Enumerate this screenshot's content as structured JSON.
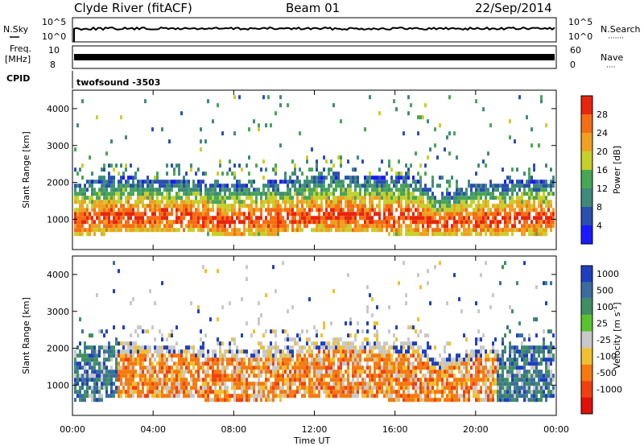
{
  "header": {
    "radar": "Clyde River (fitACF)",
    "beam": "Beam 01",
    "date": "22/Sep/2014"
  },
  "nsky_panel": {
    "left_label": "N.Sky",
    "right_label": "N.Search",
    "right_legend": "·······",
    "left_ticks": [
      "10^5",
      "10^0"
    ],
    "right_ticks": [
      "10^5",
      "10^0"
    ]
  },
  "freq_panel": {
    "left_label_line1": "Freq.",
    "left_label_line2": "[MHz]",
    "right_label": "Nave",
    "right_legend": "····",
    "left_ticks": [
      "10",
      "8"
    ],
    "right_ticks": [
      "60",
      "0"
    ]
  },
  "cpid": {
    "label": "CPID",
    "value": "twofsound -3503"
  },
  "chart_data": [
    {
      "type": "heatmap",
      "quantity": "Power",
      "ylabel": "Slant Range [km]",
      "ylim": [
        180,
        4500
      ],
      "yticks": [
        "1000",
        "2000",
        "3000",
        "4000"
      ],
      "colorbar_label": "Power [dB]",
      "colorbar_ticks": [
        "4",
        "8",
        "12",
        "16",
        "20",
        "24",
        "28"
      ],
      "colorbar_colors": [
        "#1a1aff",
        "#2a4fb0",
        "#3f8a7a",
        "#48a657",
        "#c7cf2a",
        "#f0a020",
        "#f56d12",
        "#e8250d"
      ],
      "band": [
        {
          "t": 0.5,
          "lo": 520,
          "hi": 1950
        },
        {
          "t": 2,
          "lo": 560,
          "hi": 2100
        },
        {
          "t": 4,
          "lo": 580,
          "hi": 2050
        },
        {
          "t": 6,
          "lo": 600,
          "hi": 2000
        },
        {
          "t": 7.5,
          "lo": 450,
          "hi": 1900
        },
        {
          "t": 9,
          "lo": 520,
          "hi": 1950
        },
        {
          "t": 11,
          "lo": 560,
          "hi": 2000
        },
        {
          "t": 13,
          "lo": 600,
          "hi": 2200
        },
        {
          "t": 15,
          "lo": 560,
          "hi": 2100
        },
        {
          "t": 17,
          "lo": 520,
          "hi": 2100
        },
        {
          "t": 18,
          "lo": 500,
          "hi": 1600
        },
        {
          "t": 20,
          "lo": 500,
          "hi": 1900
        },
        {
          "t": 22,
          "lo": 500,
          "hi": 2000
        },
        {
          "t": 23.9,
          "lo": 560,
          "hi": 2000
        }
      ]
    },
    {
      "type": "heatmap",
      "quantity": "Velocity",
      "ylabel": "Slant Range [km]",
      "ylim": [
        180,
        4500
      ],
      "yticks": [
        "1000",
        "2000",
        "3000",
        "4000"
      ],
      "colorbar_label": "Velocity [m s-1]",
      "colorbar_ticks": [
        "1000",
        "500",
        "100",
        "25",
        "-25",
        "-100",
        "-500",
        "-1000"
      ],
      "colorbar_colors": [
        "#1f3fbf",
        "#3b6e9e",
        "#3f8f63",
        "#58c42c",
        "#c8c8c8",
        "#f0c030",
        "#f57a10",
        "#f04010",
        "#e0100a"
      ],
      "x_start": "00:00",
      "x_end": "00:00",
      "xticks": [
        "00:00",
        "04:00",
        "08:00",
        "12:00",
        "16:00",
        "20:00",
        "00:00"
      ],
      "xlabel": "Time UT"
    }
  ]
}
